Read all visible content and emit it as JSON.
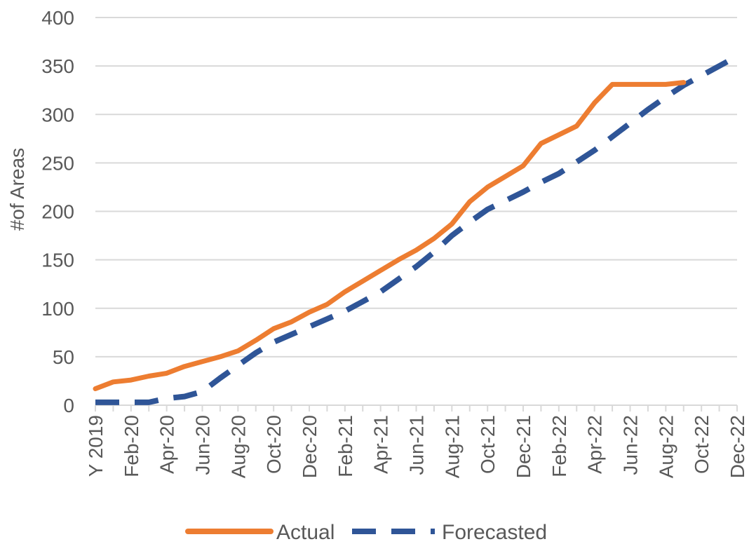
{
  "chart_data": {
    "type": "line",
    "ylabel": "#of Areas",
    "xlabel": "",
    "ylim": [
      0,
      400
    ],
    "y_ticks": [
      0,
      50,
      100,
      150,
      200,
      250,
      300,
      350,
      400
    ],
    "x_tick_labels": [
      "Y 2019",
      "Feb-20",
      "Apr-20",
      "Jun-20",
      "Aug-20",
      "Oct-20",
      "Dec-20",
      "Feb-21",
      "Apr-21",
      "Jun-21",
      "Aug-21",
      "Oct-21",
      "Dec-21",
      "Feb-22",
      "Apr-22",
      "Jun-22",
      "Aug-22",
      "Oct-22",
      "Dec-22"
    ],
    "x": [
      "Y 2019",
      "Jan-20",
      "Feb-20",
      "Mar-20",
      "Apr-20",
      "May-20",
      "Jun-20",
      "Jul-20",
      "Aug-20",
      "Sep-20",
      "Oct-20",
      "Nov-20",
      "Dec-20",
      "Jan-21",
      "Feb-21",
      "Mar-21",
      "Apr-21",
      "May-21",
      "Jun-21",
      "Jul-21",
      "Aug-21",
      "Sep-21",
      "Oct-21",
      "Nov-21",
      "Dec-21",
      "Jan-22",
      "Feb-22",
      "Mar-22",
      "Apr-22",
      "May-22",
      "Jun-22",
      "Jul-22",
      "Aug-22",
      "Sep-22",
      "Oct-22",
      "Nov-22",
      "Dec-22"
    ],
    "series": [
      {
        "name": "Actual",
        "color": "#ED7D31",
        "style": "solid",
        "values": [
          17,
          24,
          26,
          30,
          33,
          40,
          45,
          50,
          56,
          67,
          79,
          86,
          96,
          104,
          117,
          128,
          139,
          150,
          160,
          172,
          187,
          210,
          225,
          236,
          247,
          270,
          279,
          288,
          312,
          331,
          331,
          331,
          331,
          333,
          null,
          null,
          null
        ]
      },
      {
        "name": "Forecasted",
        "color": "#2F5597",
        "style": "dashed",
        "values": [
          3,
          3,
          3,
          3,
          7,
          9,
          14,
          28,
          41,
          54,
          65,
          73,
          81,
          89,
          97,
          107,
          117,
          130,
          143,
          158,
          175,
          189,
          202,
          211,
          220,
          230,
          239,
          251,
          263,
          277,
          291,
          305,
          318,
          330,
          340,
          350,
          360
        ]
      }
    ],
    "grid": "horizontal",
    "legend_position": "bottom"
  }
}
